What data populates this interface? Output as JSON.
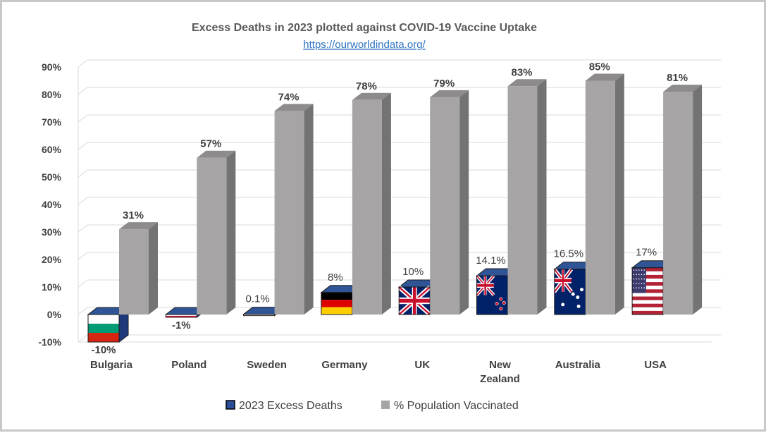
{
  "chart_data": {
    "type": "bar",
    "title": "Excess Deaths in 2023 plotted against COVID-19 Vaccine Uptake",
    "subtitle": "https://ourworldindata.org/",
    "categories": [
      "Bulgaria",
      "Poland",
      "Sweden",
      "Germany",
      "UK",
      "New Zealand",
      "Australia",
      "USA"
    ],
    "series": [
      {
        "name": "2023 Excess Deaths",
        "values": [
          -10,
          -1,
          0.1,
          8,
          10,
          14.1,
          16.5,
          17
        ],
        "labels": [
          "-10%",
          "-1%",
          "0.1%",
          "8%",
          "10%",
          "14.1%",
          "16.5%",
          "17%"
        ],
        "fill": "flags"
      },
      {
        "name": "% Population Vaccinated",
        "values": [
          31,
          57,
          74,
          78,
          79,
          83,
          85,
          81
        ],
        "labels": [
          "31%",
          "57%",
          "74%",
          "78%",
          "79%",
          "83%",
          "85%",
          "81%"
        ],
        "color": "#a6a4a5"
      }
    ],
    "ylim": [
      -10,
      90
    ],
    "yticks": [
      "90%",
      "80%",
      "70%",
      "60%",
      "50%",
      "40%",
      "30%",
      "20%",
      "10%",
      "0%",
      "-10%"
    ],
    "grid": true,
    "legend": "bottom",
    "style": "3d-column",
    "colors": {
      "legend_excess": "#2a4d9a",
      "flag_outline": "#1f3a7a"
    }
  }
}
